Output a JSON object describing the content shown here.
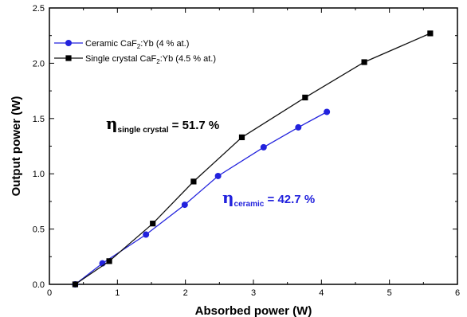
{
  "chart_data": {
    "type": "line",
    "xlabel": "Absorbed power (W)",
    "ylabel": "Output power (W)",
    "xlim": [
      0,
      6
    ],
    "ylim": [
      0,
      2.5
    ],
    "xticks": [
      "0",
      "1",
      "2",
      "3",
      "4",
      "5",
      "6"
    ],
    "yticks": [
      "0.0",
      "0.5",
      "1.0",
      "1.5",
      "2.0",
      "2.5"
    ],
    "grid": false,
    "legend_position": "top-left",
    "series": [
      {
        "name": "Ceramic CaF2:Yb (4 % at.)",
        "legend": {
          "pre": "Ceramic CaF",
          "sub": "2",
          "post": ":Yb (4 % at.)"
        },
        "color": "#2222dd",
        "marker": "circle",
        "x": [
          0.38,
          0.78,
          1.42,
          1.99,
          2.48,
          3.15,
          3.66,
          4.08
        ],
        "y": [
          0.0,
          0.19,
          0.45,
          0.72,
          0.98,
          1.24,
          1.42,
          1.56
        ]
      },
      {
        "name": "Single crystal CaF2:Yb (4.5 % at.)",
        "legend": {
          "pre": "Single crystal CaF",
          "sub": "2",
          "post": ":Yb (4.5 % at.)"
        },
        "color": "#000000",
        "line_color": "#111111",
        "marker": "square",
        "x": [
          0.38,
          0.88,
          1.52,
          2.12,
          2.83,
          3.76,
          4.63,
          5.6
        ],
        "y": [
          0.0,
          0.21,
          0.55,
          0.93,
          1.33,
          1.69,
          2.01,
          2.27
        ]
      }
    ],
    "annotations": [
      {
        "symbol": "η",
        "sub": "single crystal",
        "text": " = 51.7 %",
        "color": "#000000"
      },
      {
        "symbol": "η",
        "sub": "ceramic",
        "text": " = 42.7 %",
        "color": "#2222dd"
      }
    ]
  }
}
